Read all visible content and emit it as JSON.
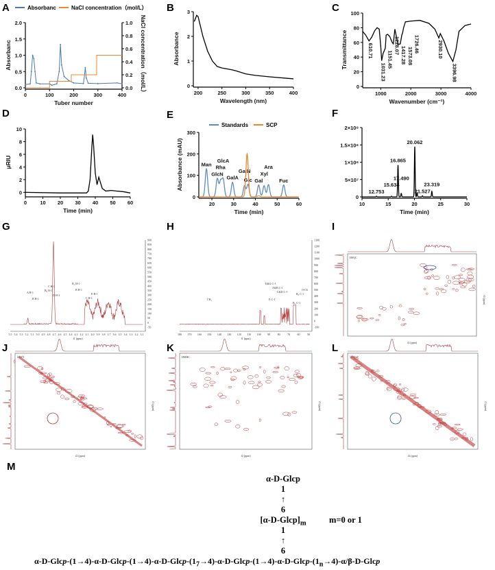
{
  "chart_data": [
    {
      "panel": "A",
      "type": "line",
      "xlabel": "Tuber number",
      "ylabel": "Absorbanc",
      "y2label": "NaCl concentration（mol/L）",
      "xlim": [
        0,
        400
      ],
      "ylim": [
        0,
        2.0
      ],
      "y2lim": [
        0,
        1.0
      ],
      "xticks": [
        "0",
        "100",
        "200",
        "300",
        "400"
      ],
      "yticks": [
        "0.0",
        "0.5",
        "1.0",
        "1.5",
        "2.0"
      ],
      "y2ticks": [
        "0.0",
        "0.2",
        "0.4",
        "0.6",
        "0.8",
        "1.0"
      ],
      "legend_position": "top",
      "series": [
        {
          "name": "Absorbanc",
          "color": "#4a78b0",
          "axis": "left",
          "points": [
            [
              0,
              0.1
            ],
            [
              20,
              0.12
            ],
            [
              25,
              0.5
            ],
            [
              30,
              1.0
            ],
            [
              35,
              0.9
            ],
            [
              40,
              0.5
            ],
            [
              45,
              0.15
            ],
            [
              60,
              0.12
            ],
            [
              100,
              0.12
            ],
            [
              110,
              0.08
            ],
            [
              130,
              0.12
            ],
            [
              140,
              0.5
            ],
            [
              145,
              1.33
            ],
            [
              150,
              0.7
            ],
            [
              160,
              0.35
            ],
            [
              180,
              0.22
            ],
            [
              200,
              0.15
            ],
            [
              240,
              0.13
            ],
            [
              245,
              0.4
            ],
            [
              248,
              0.62
            ],
            [
              252,
              0.3
            ],
            [
              260,
              0.14
            ],
            [
              300,
              0.13
            ],
            [
              380,
              0.15
            ],
            [
              400,
              0.12
            ]
          ]
        },
        {
          "name": "NaCl concentration（mol/L）",
          "color": "#e8872e",
          "axis": "right",
          "points": [
            [
              0,
              0
            ],
            [
              100,
              0
            ],
            [
              100,
              0.1
            ],
            [
              190,
              0.1
            ],
            [
              190,
              0.2
            ],
            [
              295,
              0.2
            ],
            [
              295,
              0.5
            ],
            [
              400,
              0.5
            ]
          ]
        }
      ]
    },
    {
      "panel": "B",
      "type": "line",
      "xlabel": "Wavelength (nm)",
      "ylabel": "Absorbance",
      "xlim": [
        190,
        400
      ],
      "ylim": [
        0,
        3
      ],
      "xticks": [
        "200",
        "250",
        "300",
        "350",
        "400"
      ],
      "yticks": [
        "0",
        "1",
        "2",
        "3"
      ],
      "series": [
        {
          "color": "#000000",
          "points": [
            [
              192,
              2.6
            ],
            [
              197,
              2.85
            ],
            [
              200,
              2.8
            ],
            [
              210,
              2.0
            ],
            [
              220,
              1.4
            ],
            [
              230,
              1.0
            ],
            [
              240,
              0.78
            ],
            [
              250,
              0.72
            ],
            [
              270,
              0.65
            ],
            [
              280,
              0.6
            ],
            [
              300,
              0.48
            ],
            [
              320,
              0.42
            ],
            [
              350,
              0.36
            ],
            [
              400,
              0.28
            ]
          ]
        }
      ]
    },
    {
      "panel": "C",
      "type": "line",
      "xlabel": "Wavenumber (cm⁻¹)",
      "ylabel": "Transmittance",
      "xlim": [
        400,
        4000
      ],
      "ylim": [
        0,
        100
      ],
      "xticks": [
        "1000",
        "2000",
        "3000",
        "4000"
      ],
      "yticks": [
        "0",
        "20",
        "40",
        "60",
        "80",
        "100"
      ],
      "series": [
        {
          "color": "#000000",
          "points": [
            [
              400,
              75
            ],
            [
              500,
              70
            ],
            [
              610,
              62
            ],
            [
              700,
              67
            ],
            [
              800,
              76
            ],
            [
              880,
              80
            ],
            [
              950,
              78
            ],
            [
              1000,
              55
            ],
            [
              1031,
              35
            ],
            [
              1080,
              45
            ],
            [
              1151,
              52
            ],
            [
              1180,
              70
            ],
            [
              1228,
              71
            ],
            [
              1300,
              68
            ],
            [
              1380,
              60
            ],
            [
              1417,
              58
            ],
            [
              1470,
              78
            ],
            [
              1520,
              68
            ],
            [
              1573,
              57
            ],
            [
              1650,
              58
            ],
            [
              1700,
              70
            ],
            [
              1726,
              73
            ],
            [
              1760,
              80
            ],
            [
              1820,
              88
            ],
            [
              2000,
              89
            ],
            [
              2300,
              90
            ],
            [
              2600,
              86
            ],
            [
              2800,
              78
            ],
            [
              2930,
              66
            ],
            [
              2980,
              72
            ],
            [
              3100,
              62
            ],
            [
              3250,
              45
            ],
            [
              3397,
              34
            ],
            [
              3500,
              50
            ],
            [
              3600,
              75
            ],
            [
              3800,
              83
            ],
            [
              4000,
              85
            ]
          ]
        }
      ],
      "annotations": [
        {
          "x": 610,
          "y": 62,
          "text": "610.71"
        },
        {
          "x": 1031,
          "y": 35,
          "text": "1031.23"
        },
        {
          "x": 1151,
          "y": 52,
          "text": "1151.45"
        },
        {
          "x": 1228,
          "y": 71,
          "text": "1228.07"
        },
        {
          "x": 1417,
          "y": 58,
          "text": "1417.28"
        },
        {
          "x": 1573,
          "y": 57,
          "text": "1573.08"
        },
        {
          "x": 1726,
          "y": 73,
          "text": "1726.46"
        },
        {
          "x": 2930,
          "y": 66,
          "text": "2930.10"
        },
        {
          "x": 3397,
          "y": 34,
          "text": "3396.98"
        }
      ]
    },
    {
      "panel": "D",
      "type": "line",
      "xlabel": "Time (min)",
      "ylabel": "μRIU",
      "xlim": [
        0,
        60
      ],
      "ylim": [
        -0.5,
        10
      ],
      "xticks": [
        "0",
        "10",
        "20",
        "30",
        "40",
        "50",
        "60"
      ],
      "yticks": [
        "0",
        "2",
        "4",
        "6",
        "8",
        "10"
      ],
      "series": [
        {
          "color": "#000000",
          "points": [
            [
              0,
              0
            ],
            [
              20,
              -0.1
            ],
            [
              35,
              -0.1
            ],
            [
              36,
              0.2
            ],
            [
              37,
              2
            ],
            [
              38,
              7
            ],
            [
              38.5,
              9.1
            ],
            [
              39,
              7.5
            ],
            [
              40,
              3
            ],
            [
              41,
              1.2
            ],
            [
              42,
              2.4
            ],
            [
              43,
              1.5
            ],
            [
              44,
              0.6
            ],
            [
              46,
              0.2
            ],
            [
              49,
              0.3
            ],
            [
              52,
              0.2
            ],
            [
              56,
              0.1
            ],
            [
              60,
              -0.1
            ]
          ]
        }
      ]
    },
    {
      "panel": "E",
      "type": "line",
      "xlabel": "Time (min)",
      "ylabel": "Absorbance (mAU)",
      "xlim": [
        14,
        60
      ],
      "ylim": [
        0,
        300
      ],
      "xticks": [
        "20",
        "30",
        "40",
        "50",
        "60"
      ],
      "yticks": [
        "0",
        "100",
        "200",
        "300"
      ],
      "legend_position": "top",
      "series": [
        {
          "name": "Standards",
          "color": "#5b8cc8",
          "peaks": [
            [
              17.5,
              130,
              "Man"
            ],
            [
              22.5,
              85,
              "GlcN"
            ],
            [
              24,
              72,
              "Rha"
            ],
            [
              25.2,
              80,
              "GlcA"
            ],
            [
              29.5,
              68,
              "GalA"
            ],
            [
              35,
              52,
              "GalN"
            ],
            [
              36.6,
              58,
              "Glc"
            ],
            [
              41.5,
              55,
              "Gal"
            ],
            [
              44,
              52,
              "Xyl"
            ],
            [
              46,
              57,
              "Ara"
            ],
            [
              53,
              55,
              "Fuc"
            ]
          ]
        },
        {
          "name": "SCP",
          "color": "#e8872e",
          "peaks": [
            [
              36.2,
              200,
              ""
            ],
            [
              41.5,
              5,
              ""
            ]
          ]
        }
      ]
    },
    {
      "panel": "F",
      "type": "line",
      "xlabel": "Time (min)",
      "ylabel": "",
      "xlim": [
        10,
        30
      ],
      "ylim": [
        0,
        200000000
      ],
      "xticks": [
        "10",
        "15",
        "20",
        "25",
        "30"
      ],
      "yticks": [
        "0",
        "5×10⁷",
        "1×10⁸",
        "1.5×10⁸",
        "2×10⁸"
      ],
      "series": [
        {
          "color": "#000000",
          "peaks": [
            [
              12.753,
              2000000,
              "12.753"
            ],
            [
              15.634,
              2000000,
              "15.634"
            ],
            [
              16.865,
              92000000,
              "16.865"
            ],
            [
              17.49,
              10000000,
              "17.490"
            ],
            [
              20.062,
              145000000,
              "20.062"
            ],
            [
              20.5,
              12000000,
              ""
            ],
            [
              21.527,
              3000000,
              "21.527"
            ],
            [
              23.319,
              16000000,
              "23.319"
            ]
          ]
        }
      ]
    }
  ],
  "panels": {
    "A": "A",
    "B": "B",
    "C": "C",
    "D": "D",
    "E": "E",
    "F": "F",
    "G": "G",
    "H": "H",
    "I": "I",
    "J": "J",
    "K": "K",
    "L": "L",
    "M": "M"
  },
  "nmr": {
    "G": {
      "xlabel": "f1 (ppm)",
      "xticks": [
        "5.5",
        "5.4",
        "5.3",
        "5.2",
        "5.1",
        "5.0",
        "4.9",
        "4.8",
        "4.7",
        "4.6",
        "4.5",
        "4.4",
        "4.3",
        "4.2",
        "4.1",
        "4.0",
        "3.9",
        "3.8",
        "3.7",
        "3.6",
        "3.5",
        "3.4",
        "3.3",
        "3.2",
        "3.1"
      ],
      "yticks": [
        "900",
        "850",
        "800",
        "750",
        "700",
        "650",
        "600",
        "550",
        "500",
        "450",
        "400",
        "350",
        "300",
        "250",
        "200",
        "150",
        "100",
        "50",
        "0",
        "-50"
      ],
      "labels": [
        "A H-1",
        "B H-1",
        "B₀ H-1",
        "D H-1",
        "C H-1",
        "B₁ H-1",
        "B H-1",
        "C H-1",
        "E H-1"
      ]
    },
    "H": {
      "xlabel": "f1 (ppm)",
      "xticks": [
        "180",
        "170",
        "160",
        "150",
        "140",
        "130",
        "120",
        "110",
        "100",
        "90",
        "80",
        "70",
        "60",
        "50"
      ],
      "yticks": [
        "1300",
        "1200",
        "1100",
        "1000",
        "900",
        "800",
        "700",
        "600",
        "500",
        "400",
        "300",
        "200",
        "100",
        "0",
        "-100"
      ],
      "labels": [
        "B₀ C-1",
        "B₁ C-1",
        "C&D C-1",
        "A&B C-1",
        "E&G C-1",
        "E C-1",
        "O-C6",
        "CH₃"
      ]
    },
    "I": {
      "title": "HSQC",
      "xlabel": "f2 (ppm)",
      "ylabel": "f1 (ppm)"
    },
    "J": {
      "title": "COSY",
      "xlabel": "f2 (ppm)",
      "ylabel": "f1 (ppm)"
    },
    "K": {
      "title": "HMBC",
      "xlabel": "f2 (ppm)",
      "ylabel": "f1 (ppm)"
    },
    "L": {
      "title": "NOESY",
      "xlabel": "f2 (ppm)",
      "ylabel": "f1 (ppm)"
    }
  },
  "structure": {
    "top": "α-D-Glcp",
    "one_a": "1",
    "arrow_a": "↑",
    "six_a": "6",
    "mid": "[α-D-Glcp]",
    "mid_sub": "m",
    "m_note": "m=0 or 1",
    "one_b": "1",
    "arrow_b": "↑",
    "six_b": "6",
    "main": "α-D-Glcp-(1→[→4)-α-D-Glcp-(1→[→4)-α-D-Glcp-(1→]₇→4)-α-D-Glcp-(1→4)-α-D-Glcp-(1→]ₙ→4)-α/β-D-Glcp",
    "main_parts": [
      "α-D-Glc",
      "p",
      "-(1",
      "→4)-α-D-Glc",
      "p",
      "-(1",
      "→4)-α-D-Glc",
      "p",
      "-(1",
      "7",
      "→4)-α-D-Glc",
      "p",
      "-(1→4)-α-D-Glc",
      "p",
      "-(1",
      "n",
      "→4)-α/β-D-Glc",
      "p"
    ]
  }
}
